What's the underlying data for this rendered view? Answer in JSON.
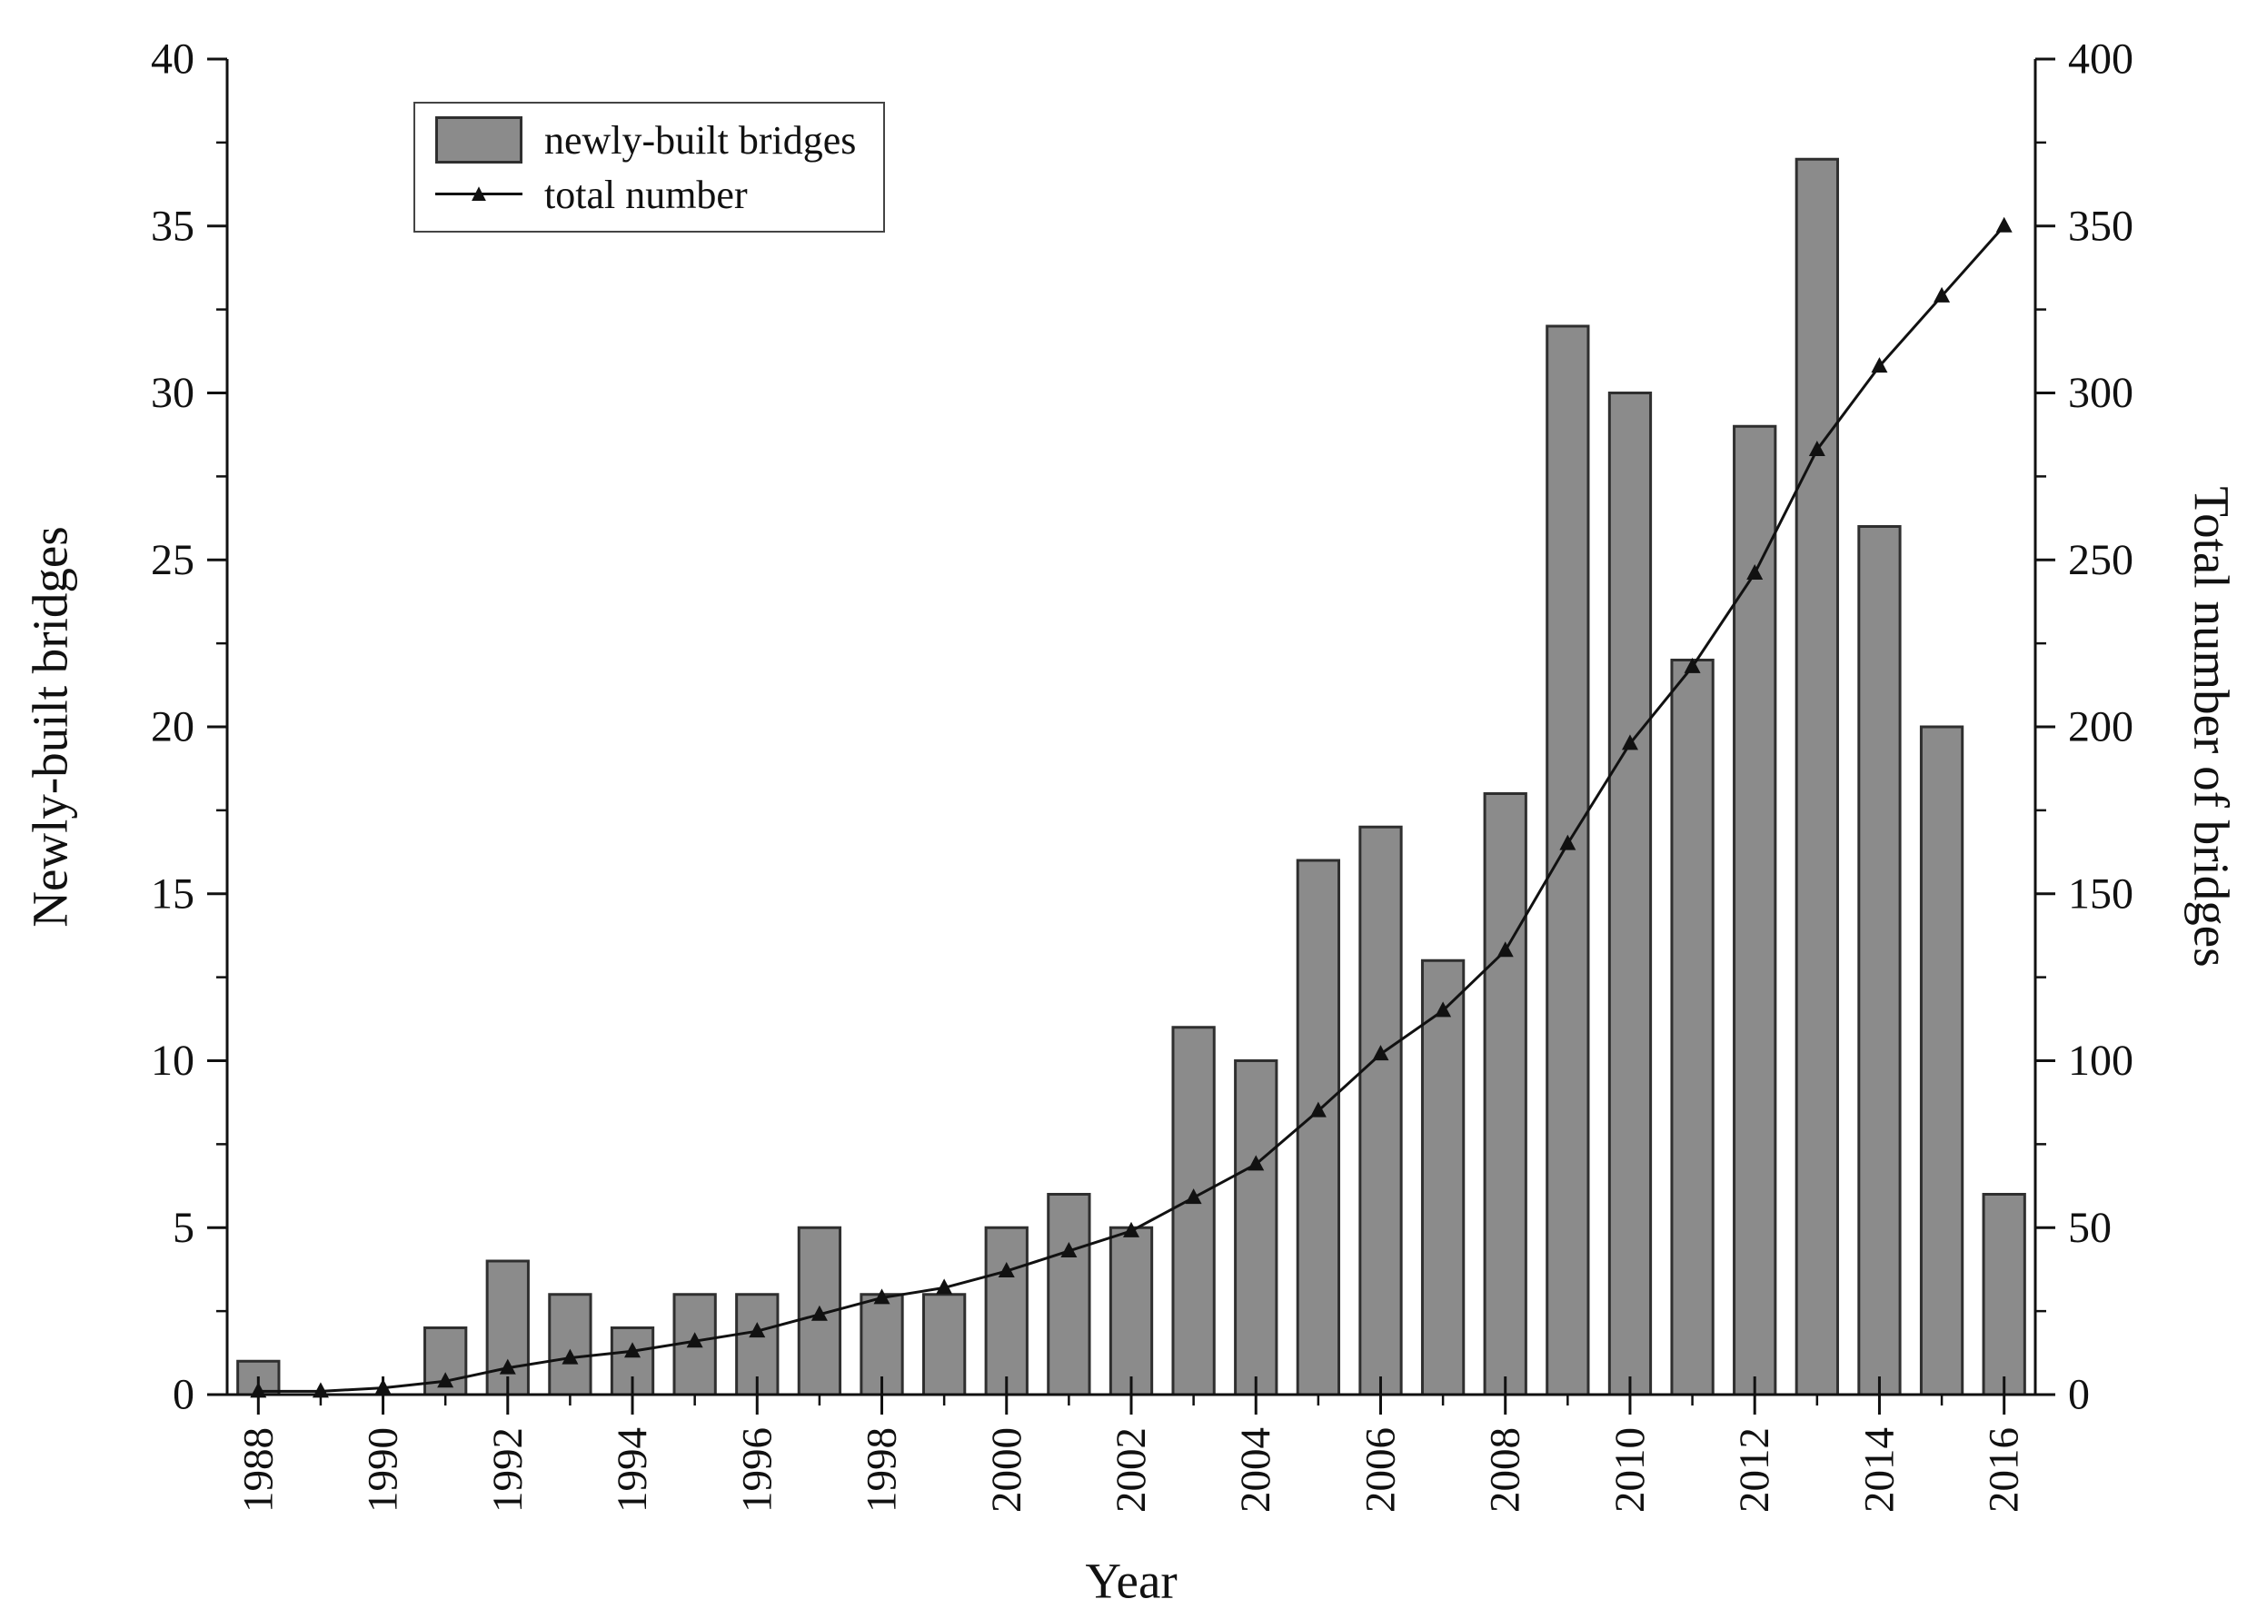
{
  "figure": {
    "background": "#ffffff"
  },
  "chart_data": {
    "type": "bar",
    "title": "",
    "xlabel": "Year",
    "ylabel_left": "Newly-built bridges",
    "ylabel_right": "Total number of bridges",
    "categories": [
      "1988",
      "1989",
      "1990",
      "1991",
      "1992",
      "1993",
      "1994",
      "1995",
      "1996",
      "1997",
      "1998",
      "1999",
      "2000",
      "2001",
      "2002",
      "2003",
      "2004",
      "2005",
      "2006",
      "2007",
      "2008",
      "2009",
      "2010",
      "2011",
      "2012",
      "2013",
      "2014",
      "2015",
      "2016"
    ],
    "series": [
      {
        "name": "newly-built bridges",
        "type": "bar",
        "axis": "left",
        "values": [
          1,
          0,
          0,
          2,
          4,
          3,
          2,
          3,
          3,
          5,
          3,
          3,
          5,
          6,
          5,
          11,
          10,
          16,
          17,
          13,
          18,
          32,
          30,
          22,
          29,
          37,
          26,
          20,
          6
        ]
      },
      {
        "name": "total number",
        "type": "line",
        "axis": "right",
        "values": [
          1,
          1,
          2,
          4,
          8,
          11,
          13,
          16,
          19,
          24,
          29,
          32,
          37,
          43,
          49,
          59,
          69,
          85,
          102,
          115,
          133,
          165,
          195,
          218,
          246,
          283,
          308,
          329,
          350
        ]
      }
    ],
    "left_axis": {
      "min": 0,
      "max": 40,
      "ticks": [
        0,
        5,
        10,
        15,
        20,
        25,
        30,
        35,
        40
      ],
      "minor_step": 2.5
    },
    "right_axis": {
      "min": 0,
      "max": 400,
      "ticks": [
        0,
        50,
        100,
        150,
        200,
        250,
        300,
        350,
        400
      ],
      "minor_step": 25
    },
    "x_label_step": 2,
    "grid": false,
    "legend_position": "top-left",
    "colors": {
      "bar_fill": "#8b8b8b",
      "bar_stroke": "#2f2f2f",
      "line": "#111111",
      "marker": "#111111",
      "axis": "#111111",
      "text": "#111111"
    }
  }
}
